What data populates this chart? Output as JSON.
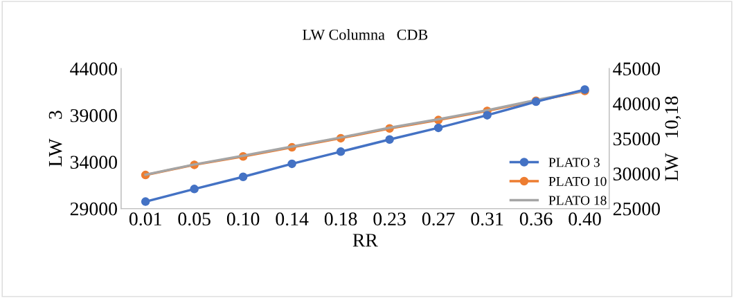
{
  "chart_data": {
    "type": "line",
    "title": "LW Columna   CDB",
    "xlabel": "RR",
    "ylabel": "LW    3",
    "y2label": "LW   10,18",
    "categories": [
      "0.01",
      "0.05",
      "0.10",
      "0.14",
      "0.18",
      "0.23",
      "0.27",
      "0.31",
      "0.36",
      "0.40"
    ],
    "series": [
      {
        "name": "PLATO 3",
        "color": "#4472c4",
        "marker": "circle",
        "values": [
          29750,
          31100,
          32400,
          33800,
          35100,
          36400,
          37650,
          39000,
          40450,
          41750
        ]
      },
      {
        "name": "PLATO 10",
        "color": "#ed7d31",
        "marker": "circle",
        "axis": "y2",
        "values": [
          29800,
          31250,
          32450,
          33750,
          35050,
          36450,
          37650,
          38950,
          40400,
          41800
        ]
      },
      {
        "name": "PLATO 18",
        "color": "#a5a5a5",
        "marker": "none",
        "axis": "y2",
        "values": [
          29850,
          31300,
          32550,
          33850,
          35150,
          36550,
          37750,
          39050,
          40500,
          41850
        ]
      }
    ],
    "ylim": [
      29000,
      44000
    ],
    "yticks": [
      29000,
      34000,
      39000,
      44000
    ],
    "y2lim": [
      25000,
      45000
    ],
    "y2ticks": [
      25000,
      30000,
      35000,
      40000,
      45000
    ],
    "grid": false,
    "legend": "bottom right"
  }
}
